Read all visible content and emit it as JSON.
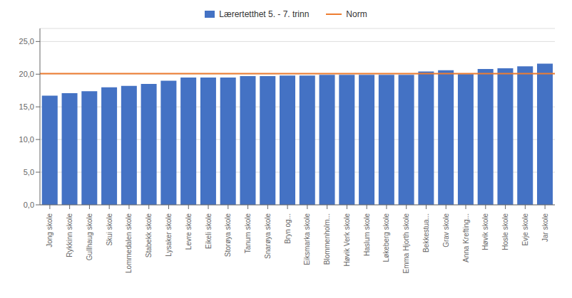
{
  "chart_data": {
    "type": "bar",
    "categories": [
      "Jong skole",
      "Rykkinn skole",
      "Gullhaug skole",
      "Skui skole",
      "Lommedalen skole",
      "Stabekk skole",
      "Lysaker skole",
      "Levre skole",
      "Eikeli skole",
      "Storøya skole",
      "Tanum skole",
      "Snarøya skole",
      "Bryn og...",
      "Eiksmarka skole",
      "Blommenholm...",
      "Høvik Verk skole",
      "Haslum skole",
      "Løkeberg skole",
      "Emma Hjorth skole",
      "Bekkestua...",
      "Grav skole",
      "Anna Krefting...",
      "Høvik skole",
      "Hosle skole",
      "Evje skole",
      "Jar skole"
    ],
    "series": [
      {
        "name": "Lærertetthet 5. - 7. trinn",
        "color": "#4472C4",
        "values": [
          16.7,
          17.1,
          17.4,
          18.0,
          18.2,
          18.5,
          19.0,
          19.5,
          19.5,
          19.5,
          19.7,
          19.7,
          19.8,
          19.8,
          19.9,
          19.9,
          19.9,
          19.9,
          19.9,
          20.4,
          20.6,
          20.0,
          20.8,
          20.9,
          21.2,
          21.6
        ]
      }
    ],
    "reference_line": {
      "name": "Norm",
      "value": 20.1,
      "color": "#ED7D31"
    },
    "ylim": [
      0,
      27
    ],
    "yticks": [
      {
        "value": 0,
        "label": "0,0"
      },
      {
        "value": 5,
        "label": "5,0"
      },
      {
        "value": 10,
        "label": "10,0"
      },
      {
        "value": 15,
        "label": "15,0"
      },
      {
        "value": 20,
        "label": "20,0"
      },
      {
        "value": 25,
        "label": "25,0"
      }
    ],
    "grid": true,
    "legend": "top"
  }
}
